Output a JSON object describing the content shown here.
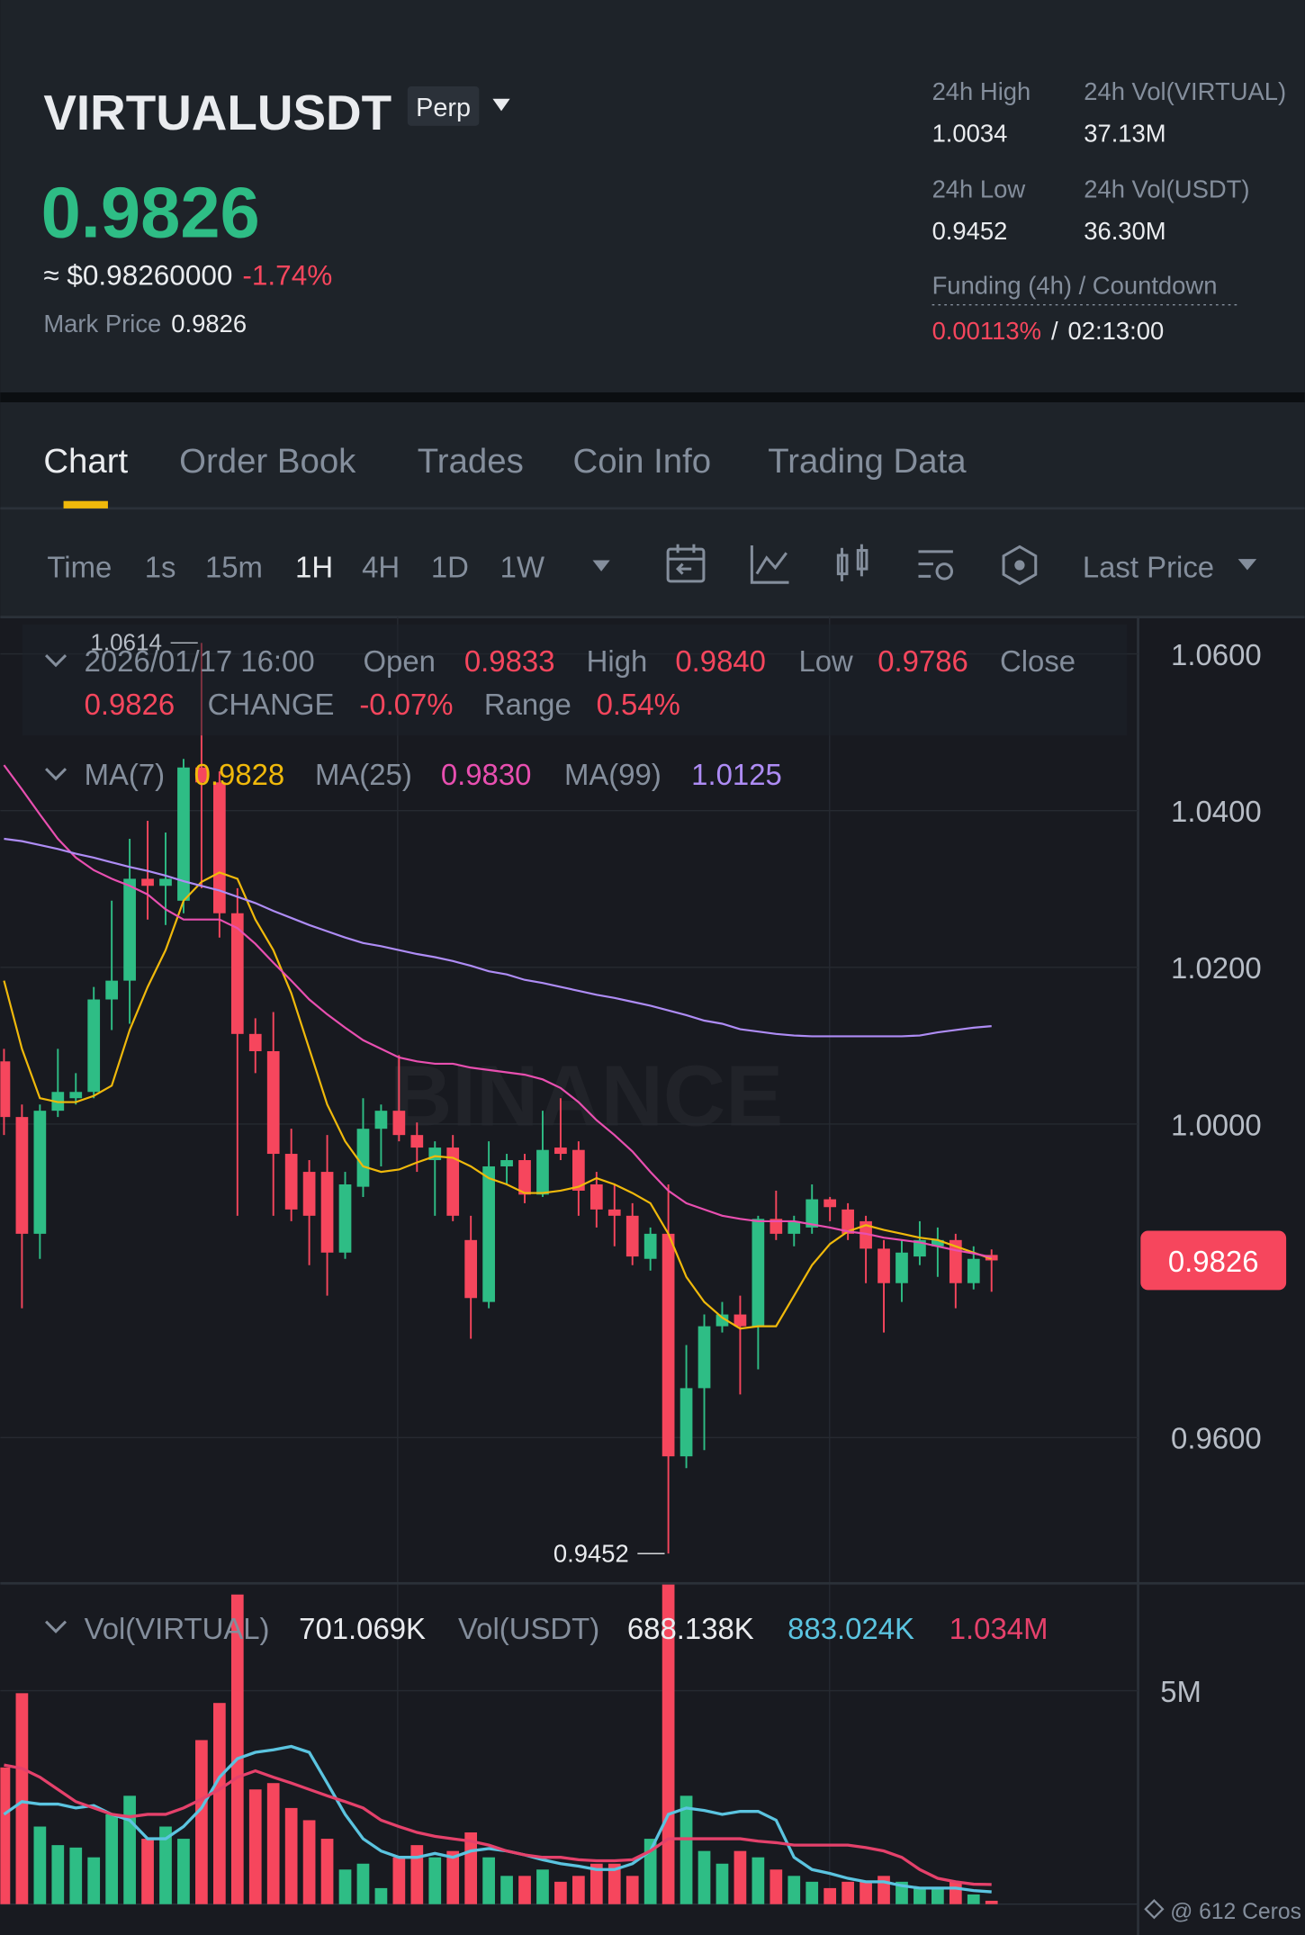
{
  "header": {
    "symbol": "VIRTUALUSDT",
    "badge": "Perp",
    "price": "0.9826",
    "usd_price": "≈ $0.98260000",
    "change": "-1.74%",
    "mark_label": "Mark Price",
    "mark_price": "0.9826",
    "stats": [
      {
        "label": "24h High",
        "value": "1.0034"
      },
      {
        "label": "24h Vol(VIRTUAL)",
        "value": "37.13M"
      },
      {
        "label": "24h Low",
        "value": "0.9452"
      },
      {
        "label": "24h Vol(USDT)",
        "value": "36.30M"
      }
    ],
    "funding": {
      "label": "Funding (4h) / Countdown",
      "rate": "0.00113%",
      "separator": "/",
      "countdown": "02:13:00"
    }
  },
  "tabs": {
    "items": [
      "Chart",
      "Order Book",
      "Trades",
      "Coin Info",
      "Trading Data"
    ],
    "active": "Chart"
  },
  "toolbar": {
    "intervals": [
      "Time",
      "1s",
      "15m",
      "1H",
      "4H",
      "1D",
      "1W"
    ],
    "active": "1H",
    "price_type": "Last Price"
  },
  "chart_data": [
    {
      "type": "candlestick",
      "watermark": "BINANCE",
      "up_color": "#2ebd85",
      "down_color": "#f6465d",
      "grid": true,
      "ylim": [
        0.9414,
        1.0647
      ],
      "yticks": [
        {
          "value": 1.06,
          "label": "1.0600"
        },
        {
          "value": 1.04,
          "label": "1.0400"
        },
        {
          "value": 1.02,
          "label": "1.0200"
        },
        {
          "value": 1.0,
          "label": "1.0000"
        },
        {
          "value": 0.96,
          "label": "0.9600"
        }
      ],
      "info": {
        "datetime": "2026/01/17 16:00",
        "fields": [
          {
            "label": "Open",
            "value": "0.9833"
          },
          {
            "label": "High",
            "value": "0.9840"
          },
          {
            "label": "Low",
            "value": "0.9786"
          },
          {
            "label": "Close",
            "value": "0.9826"
          },
          {
            "label": "CHANGE",
            "value": "-0.07%"
          },
          {
            "label": "Range",
            "value": "0.54%"
          }
        ]
      },
      "open": [
        1.008,
        1.0009,
        0.986,
        1.0017,
        1.0033,
        1.0041,
        1.0159,
        1.0183,
        1.0313,
        1.0304,
        1.0285,
        1.0455,
        1.0436,
        1.0269,
        1.0115,
        1.0093,
        0.9962,
        0.9939,
        0.9939,
        0.9836,
        0.992,
        0.9994,
        1.0017,
        0.9986,
        0.9954,
        0.997,
        0.9852,
        0.9773,
        0.9946,
        0.9954,
        0.991,
        0.997,
        0.9967,
        0.9923,
        0.9891,
        0.9883,
        0.9828,
        0.986,
        0.9576,
        0.9663,
        0.9742,
        0.9757,
        0.9742,
        0.9879,
        0.986,
        0.9868,
        0.9904,
        0.9891,
        0.9876,
        0.9841,
        0.9797,
        0.9831,
        0.9844,
        0.9852,
        0.9797,
        0.9833
      ],
      "high": [
        1.0096,
        1.0025,
        1.0025,
        1.0096,
        1.0065,
        1.0175,
        1.0285,
        1.0364,
        1.0387,
        1.0372,
        1.0466,
        1.0614,
        1.045,
        1.0301,
        1.0135,
        1.0143,
        0.9994,
        0.9954,
        0.9986,
        0.9939,
        1.0033,
        1.0025,
        1.0088,
        1.0002,
        0.9978,
        0.9986,
        0.9883,
        0.9978,
        0.9962,
        0.9962,
        1.0017,
        1.0033,
        0.9978,
        0.9939,
        0.9923,
        0.9899,
        0.9868,
        0.9923,
        0.9718,
        0.9757,
        0.9773,
        0.9781,
        0.9883,
        0.9915,
        0.9883,
        0.9923,
        0.9907,
        0.9899,
        0.9883,
        0.9852,
        0.9852,
        0.9876,
        0.9868,
        0.986,
        0.9844,
        0.984
      ],
      "low": [
        0.9986,
        0.9765,
        0.9828,
        1.0009,
        1.0025,
        1.0033,
        1.012,
        1.0128,
        1.0261,
        1.0254,
        1.0269,
        1.0301,
        1.0238,
        0.9883,
        1.0065,
        0.9883,
        0.9876,
        0.982,
        0.9781,
        0.9828,
        0.9907,
        0.9946,
        0.9978,
        0.9939,
        0.9883,
        0.9876,
        0.9726,
        0.9765,
        0.9923,
        0.9899,
        0.9907,
        0.9954,
        0.9883,
        0.9868,
        0.9844,
        0.982,
        0.9813,
        0.9452,
        0.9561,
        0.9584,
        0.9734,
        0.9655,
        0.9687,
        0.9852,
        0.9844,
        0.986,
        0.9876,
        0.9852,
        0.9797,
        0.9734,
        0.9773,
        0.982,
        0.9805,
        0.9765,
        0.9789,
        0.9786
      ],
      "close": [
        1.0009,
        0.986,
        1.0017,
        1.0041,
        1.0041,
        1.0159,
        1.0183,
        1.0313,
        1.0304,
        1.0313,
        1.0455,
        1.0436,
        1.0269,
        1.0115,
        1.0093,
        0.9962,
        0.9891,
        0.9883,
        0.9836,
        0.9923,
        0.9994,
        1.0017,
        0.9986,
        0.997,
        0.997,
        0.9883,
        0.9778,
        0.9946,
        0.9954,
        0.991,
        0.9967,
        0.9962,
        0.9915,
        0.9891,
        0.9883,
        0.9831,
        0.986,
        0.9576,
        0.9663,
        0.9742,
        0.9757,
        0.9742,
        0.9879,
        0.986,
        0.9876,
        0.9904,
        0.9894,
        0.986,
        0.9841,
        0.9797,
        0.9836,
        0.9852,
        0.9852,
        0.9797,
        0.9828,
        0.9826
      ],
      "series": [
        {
          "name": "MA(7)",
          "color": "#f0b90b",
          "legend_value": "0.9828",
          "values": [
            1.0183,
            1.0096,
            1.0033,
            1.0028,
            1.0028,
            1.0036,
            1.0049,
            1.012,
            1.0175,
            1.0222,
            1.0285,
            1.0309,
            1.0321,
            1.0313,
            1.0261,
            1.0222,
            1.0167,
            1.0096,
            1.0025,
            0.9978,
            0.9946,
            0.9939,
            0.9942,
            0.9951,
            0.9959,
            0.9957,
            0.9946,
            0.9931,
            0.9923,
            0.9912,
            0.9912,
            0.9915,
            0.992,
            0.9931,
            0.9923,
            0.9912,
            0.9899,
            0.986,
            0.9805,
            0.9773,
            0.9753,
            0.9739,
            0.9742,
            0.9742,
            0.9781,
            0.982,
            0.9847,
            0.9863,
            0.9871,
            0.9865,
            0.986,
            0.9855,
            0.9852,
            0.9844,
            0.9836,
            0.9828
          ]
        },
        {
          "name": "MA(25)",
          "color": "#e84fb0",
          "legend_value": "0.9830",
          "values": [
            1.0458,
            1.0427,
            1.0395,
            1.0364,
            1.034,
            1.0324,
            1.0313,
            1.0304,
            1.0293,
            1.0274,
            1.0261,
            1.0261,
            1.0261,
            1.025,
            1.023,
            1.0206,
            1.0183,
            1.0159,
            1.014,
            1.0123,
            1.0107,
            1.0096,
            1.0085,
            1.008,
            1.0077,
            1.0077,
            1.0072,
            1.0069,
            1.0066,
            1.0063,
            1.0057,
            1.0046,
            1.0028,
            1.0005,
            0.9986,
            0.9965,
            0.9939,
            0.9915,
            0.9899,
            0.9891,
            0.9883,
            0.9879,
            0.9876,
            0.9876,
            0.9876,
            0.9872,
            0.9868,
            0.9863,
            0.986,
            0.9855,
            0.9852,
            0.9849,
            0.9844,
            0.9839,
            0.9835,
            0.983
          ]
        },
        {
          "name": "MA(99)",
          "color": "#ae8cf5",
          "legend_value": "1.0125",
          "values": [
            1.0364,
            1.0361,
            1.0356,
            1.0351,
            1.0345,
            1.034,
            1.0334,
            1.0328,
            1.0323,
            1.0317,
            1.031,
            1.0304,
            1.0298,
            1.029,
            1.0282,
            1.0272,
            1.0263,
            1.0254,
            1.0246,
            1.0238,
            1.0231,
            1.0227,
            1.0222,
            1.0217,
            1.0213,
            1.0208,
            1.0202,
            1.0195,
            1.0191,
            1.0184,
            1.018,
            1.0175,
            1.017,
            1.0165,
            1.0161,
            1.0156,
            1.0151,
            1.0145,
            1.0139,
            1.0132,
            1.0128,
            1.0121,
            1.0118,
            1.0115,
            1.0113,
            1.0112,
            1.0112,
            1.0112,
            1.0112,
            1.0112,
            1.0112,
            1.0113,
            1.0117,
            1.012,
            1.0123,
            1.0125
          ]
        }
      ]
    },
    {
      "type": "bar",
      "grid": true,
      "ylim": [
        0,
        7.2
      ],
      "yticks": [
        {
          "value": 5,
          "label": "5M"
        }
      ],
      "legend": [
        {
          "name": "Vol(VIRTUAL)",
          "value": "701.069K"
        },
        {
          "name": "Vol(USDT)",
          "value": "688.138K"
        }
      ],
      "values": [
        3.43,
        4.95,
        2.22,
        1.84,
        1.79,
        1.59,
        2.47,
        2.85,
        1.97,
        2.22,
        1.97,
        3.99,
        4.75,
        6.97,
        2.98,
        3.11,
        2.6,
        2.35,
        1.97,
        1.34,
        1.46,
        0.96,
        1.59,
        1.84,
        1.59,
        1.72,
        2.1,
        1.59,
        1.21,
        1.21,
        1.34,
        1.09,
        1.21,
        1.46,
        1.46,
        1.21,
        1.97,
        7.2,
        2.85,
        1.72,
        1.46,
        1.72,
        1.59,
        1.34,
        1.21,
        1.09,
        0.96,
        1.09,
        1.09,
        1.21,
        1.09,
        0.96,
        0.96,
        1.09,
        0.83,
        0.701069
      ],
      "series": [
        {
          "color": "#5bc4e0",
          "legend_value": "883.024K",
          "values": [
            2.47,
            2.73,
            2.68,
            2.68,
            2.6,
            2.65,
            2.47,
            2.35,
            1.97,
            1.97,
            2.22,
            2.6,
            3.23,
            3.61,
            3.74,
            3.79,
            3.86,
            3.74,
            3.11,
            2.47,
            1.97,
            1.72,
            1.59,
            1.59,
            1.67,
            1.59,
            1.72,
            1.77,
            1.72,
            1.64,
            1.54,
            1.46,
            1.41,
            1.34,
            1.34,
            1.46,
            1.72,
            2.47,
            2.6,
            2.55,
            2.47,
            2.53,
            2.53,
            2.35,
            1.59,
            1.34,
            1.26,
            1.16,
            1.09,
            1.09,
            1.01,
            0.96,
            0.96,
            0.96,
            0.91,
            0.883024
          ]
        },
        {
          "color": "#e5416b",
          "legend_value": "1.034M",
          "values": [
            3.48,
            3.41,
            3.23,
            2.98,
            2.73,
            2.6,
            2.47,
            2.42,
            2.47,
            2.47,
            2.6,
            2.78,
            2.98,
            3.23,
            3.36,
            3.23,
            3.11,
            2.98,
            2.85,
            2.73,
            2.6,
            2.35,
            2.22,
            2.1,
            2.02,
            1.97,
            1.92,
            1.84,
            1.72,
            1.64,
            1.59,
            1.59,
            1.54,
            1.52,
            1.52,
            1.54,
            1.72,
            1.97,
            1.97,
            1.97,
            1.97,
            1.97,
            1.92,
            1.89,
            1.84,
            1.84,
            1.84,
            1.84,
            1.79,
            1.72,
            1.59,
            1.34,
            1.16,
            1.09,
            1.04,
            1.034
          ]
        }
      ]
    }
  ],
  "footer": "@ 612 Ceros"
}
